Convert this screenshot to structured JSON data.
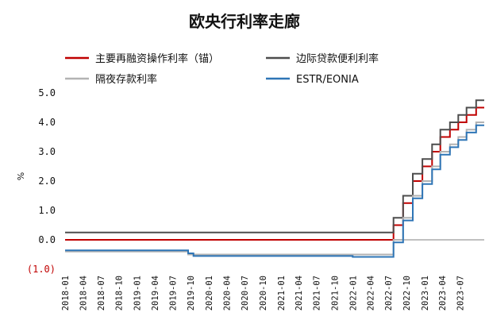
{
  "chart_data": {
    "type": "line",
    "title": "欧央行利率走廊",
    "ylabel": "%",
    "ylim": [
      -1.0,
      5.0
    ],
    "y_ticks": [
      {
        "value": 5.0,
        "label": "5.0"
      },
      {
        "value": 4.0,
        "label": "4.0"
      },
      {
        "value": 3.0,
        "label": "3.0"
      },
      {
        "value": 2.0,
        "label": "2.0"
      },
      {
        "value": 1.0,
        "label": "1.0"
      },
      {
        "value": 0.0,
        "label": "0.0"
      },
      {
        "value": -1.0,
        "label": "(1.0)"
      }
    ],
    "x_range": [
      "2018-01-01",
      "2023-10-31"
    ],
    "x_ticks": [
      "2018-01",
      "2018-04",
      "2018-07",
      "2018-10",
      "2019-01",
      "2019-04",
      "2019-07",
      "2019-10",
      "2020-01",
      "2020-04",
      "2020-07",
      "2020-10",
      "2021-01",
      "2021-04",
      "2021-07",
      "2021-10",
      "2022-01",
      "2022-04",
      "2022-07",
      "2022-10",
      "2023-01",
      "2023-04",
      "2023-07"
    ],
    "legend_position": "top",
    "grid": false,
    "series": [
      {
        "name": "主要再融资操作利率（锚）",
        "color": "#c00000",
        "step": true,
        "points": [
          [
            "2018-01-01",
            0.0
          ],
          [
            "2022-07-27",
            0.5
          ],
          [
            "2022-09-14",
            1.25
          ],
          [
            "2022-11-02",
            2.0
          ],
          [
            "2022-12-21",
            2.5
          ],
          [
            "2023-02-08",
            3.0
          ],
          [
            "2023-03-22",
            3.5
          ],
          [
            "2023-05-10",
            3.75
          ],
          [
            "2023-06-21",
            4.0
          ],
          [
            "2023-08-02",
            4.25
          ],
          [
            "2023-09-20",
            4.5
          ],
          [
            "2023-10-31",
            4.5
          ]
        ]
      },
      {
        "name": "边际贷款便利利率",
        "color": "#4d4d4d",
        "step": true,
        "points": [
          [
            "2018-01-01",
            0.25
          ],
          [
            "2022-07-27",
            0.75
          ],
          [
            "2022-09-14",
            1.5
          ],
          [
            "2022-11-02",
            2.25
          ],
          [
            "2022-12-21",
            2.75
          ],
          [
            "2023-02-08",
            3.25
          ],
          [
            "2023-03-22",
            3.75
          ],
          [
            "2023-05-10",
            4.0
          ],
          [
            "2023-06-21",
            4.25
          ],
          [
            "2023-08-02",
            4.5
          ],
          [
            "2023-09-20",
            4.75
          ],
          [
            "2023-10-31",
            4.75
          ]
        ]
      },
      {
        "name": "隔夜存款利率",
        "color": "#b3b3b3",
        "step": true,
        "points": [
          [
            "2018-01-01",
            -0.4
          ],
          [
            "2019-09-18",
            -0.5
          ],
          [
            "2022-07-27",
            0.0
          ],
          [
            "2022-09-14",
            0.75
          ],
          [
            "2022-11-02",
            1.5
          ],
          [
            "2022-12-21",
            2.0
          ],
          [
            "2023-02-08",
            2.5
          ],
          [
            "2023-03-22",
            3.0
          ],
          [
            "2023-05-10",
            3.25
          ],
          [
            "2023-06-21",
            3.5
          ],
          [
            "2023-08-02",
            3.75
          ],
          [
            "2023-09-20",
            4.0
          ],
          [
            "2023-10-31",
            4.0
          ]
        ]
      },
      {
        "name": "ESTR/EONIA",
        "color": "#2e75b6",
        "step": true,
        "points": [
          [
            "2018-01-01",
            -0.36
          ],
          [
            "2019-09-18",
            -0.46
          ],
          [
            "2019-10-15",
            -0.55
          ],
          [
            "2022-01-01",
            -0.58
          ],
          [
            "2022-07-27",
            -0.09
          ],
          [
            "2022-09-14",
            0.66
          ],
          [
            "2022-11-02",
            1.41
          ],
          [
            "2022-12-21",
            1.9
          ],
          [
            "2023-02-08",
            2.4
          ],
          [
            "2023-03-22",
            2.9
          ],
          [
            "2023-05-10",
            3.15
          ],
          [
            "2023-06-21",
            3.4
          ],
          [
            "2023-08-02",
            3.65
          ],
          [
            "2023-09-20",
            3.9
          ],
          [
            "2023-10-31",
            3.9
          ]
        ]
      }
    ]
  }
}
